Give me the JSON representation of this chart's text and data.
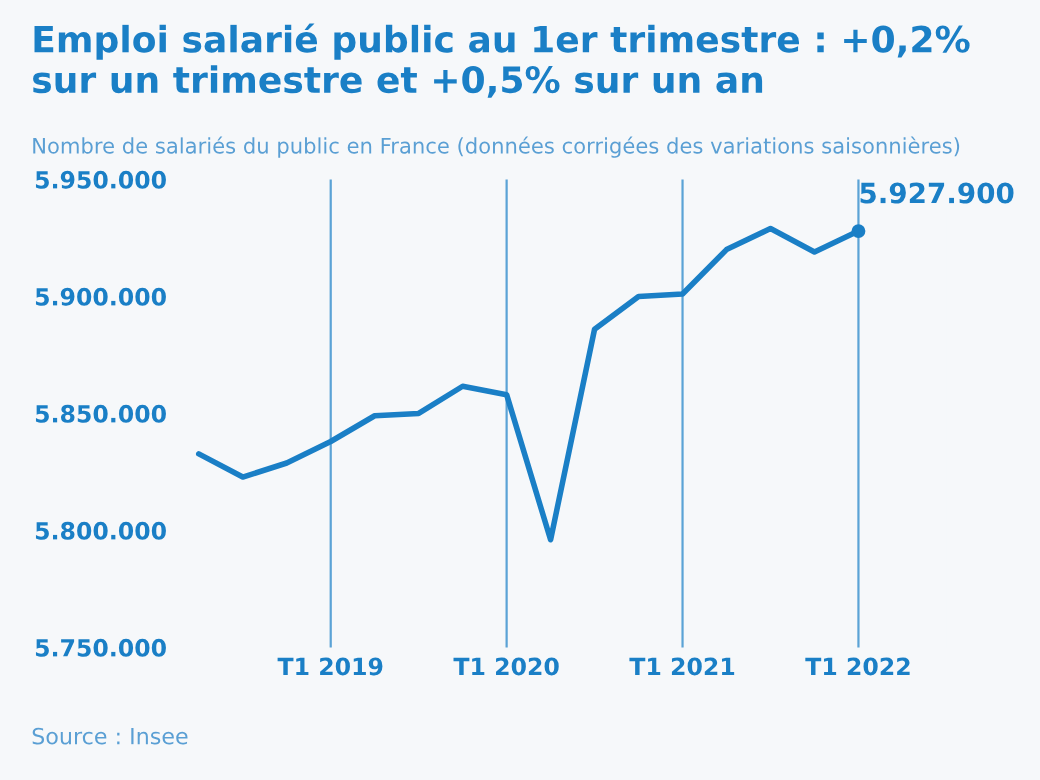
{
  "chart_data": {
    "type": "line",
    "title": "Emploi salarié public au 1er trimestre : +0,2% sur un trimestre et +0,5% sur un an",
    "subtitle": "Nombre de salariés du public en France (données corrigées des variations saisonnières)",
    "categories": [
      null,
      null,
      null,
      "T1 2019",
      null,
      null,
      null,
      "T1 2020",
      null,
      null,
      null,
      "T1 2021",
      null,
      null,
      null,
      "T1 2022"
    ],
    "series": [
      {
        "color": "#1a7fc6",
        "values": [
          5832700,
          5822800,
          5828800,
          5838000,
          5849000,
          5850000,
          5861600,
          5858000,
          5796000,
          5886000,
          5900000,
          5901000,
          5920000,
          5929000,
          5919000,
          5927900
        ]
      }
    ],
    "ylim": [
      5750000,
      5950000
    ],
    "yticks": [
      {
        "value": 5750000,
        "label": "5.750.000"
      },
      {
        "value": 5800000,
        "label": "5.800.000"
      },
      {
        "value": 5850000,
        "label": "5.850.000"
      },
      {
        "value": 5900000,
        "label": "5.900.000"
      },
      {
        "value": 5950000,
        "label": "5.950.000"
      }
    ],
    "grid": "x",
    "annotations": [
      {
        "text": "5.927.900",
        "x": "T1 2022",
        "y": 5927900
      },
      "Source : Insee"
    ]
  }
}
